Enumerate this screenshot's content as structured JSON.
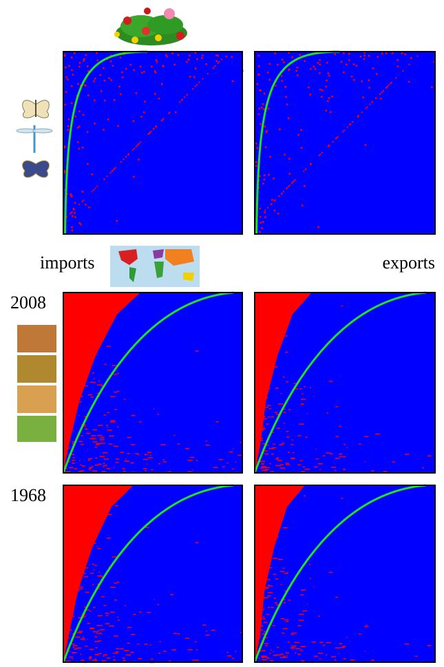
{
  "labels": {
    "imports": "imports",
    "exports": "exports"
  },
  "rows": [
    {
      "year": "2008"
    },
    {
      "year": "1968"
    }
  ]
}
